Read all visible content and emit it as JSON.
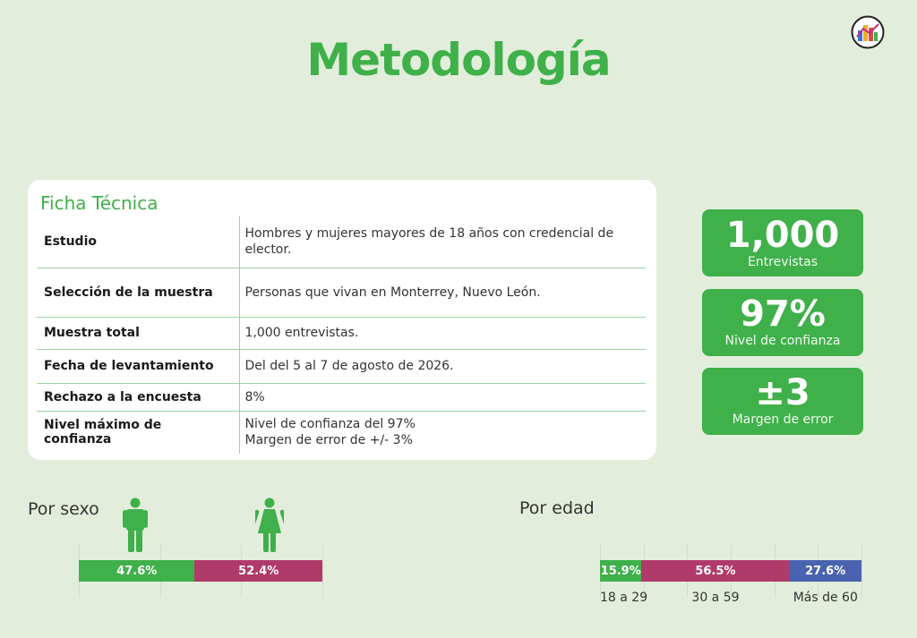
{
  "page": {
    "title": "Metodología"
  },
  "ficha": {
    "title": "Ficha Técnica",
    "rows": [
      {
        "label": "Estudio",
        "value": "Hombres y mujeres mayores de 18 años con credencial de elector."
      },
      {
        "label": "Selección de la muestra",
        "value": "Personas que vivan en Monterrey, Nuevo León."
      },
      {
        "label": "Muestra total",
        "value": "1,000 entrevistas."
      },
      {
        "label": "Fecha de levantamiento",
        "value": "Del  del 5 al 7 de agosto de 2026."
      },
      {
        "label": "Rechazo a la encuesta",
        "value": "8%"
      },
      {
        "label": "Nivel máximo de confianza",
        "value": "Nivel de confianza del 97%",
        "value2": "Margen de error de +/- 3%"
      }
    ]
  },
  "stats": [
    {
      "big": "1,000",
      "small": "Entrevistas"
    },
    {
      "big": "97%",
      "small": "Nivel de confianza"
    },
    {
      "big": "±3",
      "small": "Margen de error"
    }
  ],
  "sexo": {
    "label": "Por sexo",
    "icons": [
      "male-icon",
      "female-icon"
    ],
    "segments": [
      {
        "name": "Hombres",
        "value": 47.6,
        "label": "47.6%",
        "color": "#3fb04a"
      },
      {
        "name": "Mujeres",
        "value": 52.4,
        "label": "52.4%",
        "color": "#b03a6a"
      }
    ]
  },
  "edad": {
    "label": "Por edad",
    "segments": [
      {
        "value": 15.9,
        "label": "15.9%",
        "category": "18 a 29",
        "color": "#3fb04a"
      },
      {
        "value": 56.5,
        "label": "56.5%",
        "category": "30 a 59",
        "color": "#b03a6a"
      },
      {
        "value": 27.6,
        "label": "27.6%",
        "category": "Más de 60",
        "color": "#4a63b0"
      }
    ]
  },
  "colors": {
    "accent": "#3fb04a",
    "magenta": "#b03a6a",
    "blue": "#4a63b0",
    "background": "#e2eedb"
  }
}
